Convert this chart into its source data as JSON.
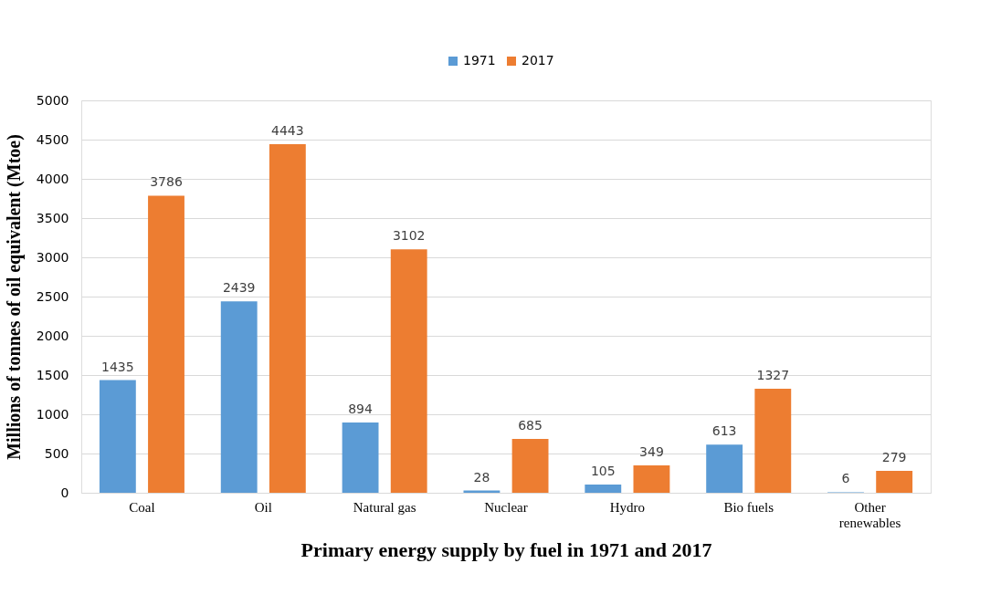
{
  "chart_data": {
    "type": "bar",
    "xlabel": "Primary energy supply by fuel in 1971 and 2017",
    "ylabel": "Millions of tonnes of oil equivalent (Mtoe)",
    "categories": [
      "Coal",
      "Oil",
      "Natural gas",
      "Nuclear",
      "Hydro",
      "Bio fuels",
      "Other renewables"
    ],
    "series": [
      {
        "name": "1971",
        "color": "#5b9bd5",
        "values": [
          1435,
          2439,
          894,
          28,
          105,
          613,
          6
        ]
      },
      {
        "name": "2017",
        "color": "#ed7d31",
        "values": [
          3786,
          4443,
          3102,
          685,
          349,
          1327,
          279
        ]
      }
    ],
    "ylim": [
      0,
      5000
    ],
    "yticks": [
      0,
      500,
      1000,
      1500,
      2000,
      2500,
      3000,
      3500,
      4000,
      4500,
      5000
    ],
    "grid": "y",
    "legend": "top",
    "data_labels": true
  }
}
